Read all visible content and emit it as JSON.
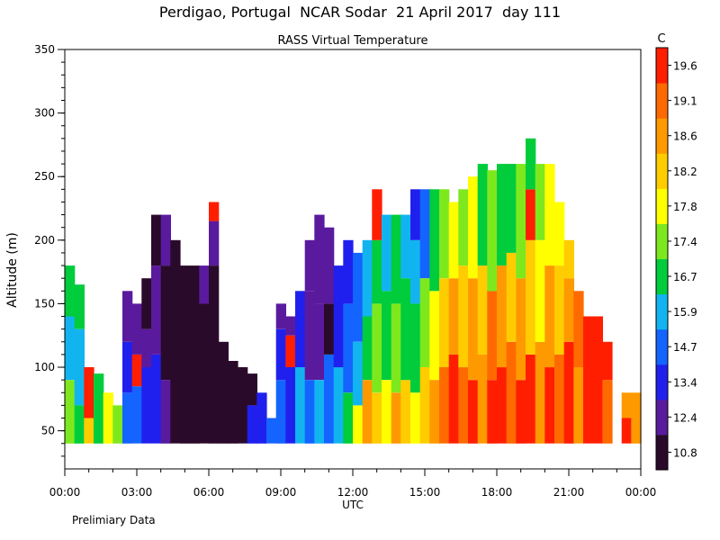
{
  "chart_data": {
    "type": "heatmap",
    "title": "Perdigao, Portugal  NCAR Sodar  21 April 2017  day 111",
    "subtitle": "RASS Virtual Temperature",
    "xlabel": "UTC",
    "ylabel": "Altitude (m)",
    "footnote": "Prelimiary Data",
    "colorbar_unit": "C",
    "xlim": [
      0,
      24
    ],
    "ylim": [
      20,
      350
    ],
    "x_ticks": [
      {
        "value": 0,
        "label": "00:00"
      },
      {
        "value": 3,
        "label": "03:00"
      },
      {
        "value": 6,
        "label": "06:00"
      },
      {
        "value": 9,
        "label": "09:00"
      },
      {
        "value": 12,
        "label": "12:00"
      },
      {
        "value": 15,
        "label": "15:00"
      },
      {
        "value": 18,
        "label": "18:00"
      },
      {
        "value": 21,
        "label": "21:00"
      },
      {
        "value": 24,
        "label": "00:00"
      }
    ],
    "y_ticks": [
      {
        "value": 50,
        "label": "50"
      },
      {
        "value": 100,
        "label": "100"
      },
      {
        "value": 150,
        "label": "150"
      },
      {
        "value": 200,
        "label": "200"
      },
      {
        "value": 250,
        "label": "250"
      },
      {
        "value": 300,
        "label": "300"
      },
      {
        "value": 350,
        "label": "350"
      }
    ],
    "colorbar_levels": [
      "10.8",
      "12.4",
      "13.4",
      "14.7",
      "15.9",
      "16.7",
      "17.4",
      "17.8",
      "18.2",
      "18.6",
      "19.1",
      "19.6"
    ],
    "colorbar_colors": [
      "#2a0a2a",
      "#5a1a9e",
      "#2020ee",
      "#1464ff",
      "#12b4f0",
      "#00cc3c",
      "#7ee81e",
      "#ffff00",
      "#ffcc00",
      "#ff9900",
      "#ff6a00",
      "#ff1e00"
    ],
    "columns": [
      {
        "t": 0.0,
        "top": 180,
        "bands": [
          [
            40,
            90,
            "#7ee81e"
          ],
          [
            90,
            140,
            "#12b4f0"
          ],
          [
            140,
            180,
            "#00cc3c"
          ]
        ]
      },
      {
        "t": 0.4,
        "top": 165,
        "bands": [
          [
            40,
            70,
            "#00cc3c"
          ],
          [
            70,
            130,
            "#12b4f0"
          ],
          [
            130,
            165,
            "#00cc3c"
          ]
        ]
      },
      {
        "t": 0.8,
        "top": 100,
        "bands": [
          [
            40,
            60,
            "#ffcc00"
          ],
          [
            60,
            100,
            "#ff1e00"
          ]
        ]
      },
      {
        "t": 1.2,
        "top": 95,
        "bands": [
          [
            40,
            95,
            "#00cc3c"
          ]
        ]
      },
      {
        "t": 1.6,
        "top": 80,
        "bands": [
          [
            40,
            80,
            "#ffff00"
          ]
        ]
      },
      {
        "t": 2.0,
        "top": 70,
        "bands": [
          [
            40,
            70,
            "#7ee81e"
          ]
        ]
      },
      {
        "t": 2.4,
        "top": 160,
        "bands": [
          [
            40,
            80,
            "#1464ff"
          ],
          [
            80,
            120,
            "#2020ee"
          ],
          [
            120,
            160,
            "#5a1a9e"
          ]
        ]
      },
      {
        "t": 2.8,
        "top": 150,
        "bands": [
          [
            40,
            85,
            "#1464ff"
          ],
          [
            85,
            110,
            "#ff1e00"
          ],
          [
            110,
            150,
            "#5a1a9e"
          ]
        ]
      },
      {
        "t": 3.2,
        "top": 170,
        "bands": [
          [
            40,
            100,
            "#2020ee"
          ],
          [
            100,
            130,
            "#5a1a9e"
          ],
          [
            130,
            170,
            "#2a0a2a"
          ]
        ]
      },
      {
        "t": 3.6,
        "top": 220,
        "bands": [
          [
            40,
            110,
            "#2020ee"
          ],
          [
            110,
            180,
            "#5a1a9e"
          ],
          [
            180,
            220,
            "#2a0a2a"
          ]
        ]
      },
      {
        "t": 4.0,
        "top": 220,
        "bands": [
          [
            40,
            90,
            "#5a1a9e"
          ],
          [
            90,
            180,
            "#2a0a2a"
          ],
          [
            180,
            220,
            "#5a1a9e"
          ]
        ]
      },
      {
        "t": 4.4,
        "top": 200,
        "bands": [
          [
            40,
            200,
            "#2a0a2a"
          ]
        ]
      },
      {
        "t": 4.8,
        "top": 180,
        "bands": [
          [
            40,
            180,
            "#2a0a2a"
          ]
        ]
      },
      {
        "t": 5.2,
        "top": 180,
        "bands": [
          [
            40,
            180,
            "#2a0a2a"
          ]
        ]
      },
      {
        "t": 5.6,
        "top": 180,
        "bands": [
          [
            40,
            150,
            "#2a0a2a"
          ],
          [
            150,
            180,
            "#5a1a9e"
          ]
        ]
      },
      {
        "t": 6.0,
        "top": 230,
        "bands": [
          [
            40,
            180,
            "#2a0a2a"
          ],
          [
            180,
            215,
            "#5a1a9e"
          ],
          [
            215,
            230,
            "#ff1e00"
          ]
        ]
      },
      {
        "t": 6.4,
        "top": 120,
        "bands": [
          [
            40,
            120,
            "#2a0a2a"
          ]
        ]
      },
      {
        "t": 6.8,
        "top": 105,
        "bands": [
          [
            40,
            105,
            "#2a0a2a"
          ]
        ]
      },
      {
        "t": 7.2,
        "top": 100,
        "bands": [
          [
            40,
            100,
            "#2a0a2a"
          ]
        ]
      },
      {
        "t": 7.6,
        "top": 95,
        "bands": [
          [
            40,
            70,
            "#2020ee"
          ],
          [
            70,
            95,
            "#2a0a2a"
          ]
        ]
      },
      {
        "t": 8.0,
        "top": 80,
        "bands": [
          [
            40,
            80,
            "#2020ee"
          ]
        ]
      },
      {
        "t": 8.4,
        "top": 60,
        "bands": [
          [
            40,
            60,
            "#1464ff"
          ]
        ]
      },
      {
        "t": 8.8,
        "top": 150,
        "bands": [
          [
            40,
            90,
            "#1464ff"
          ],
          [
            90,
            130,
            "#2020ee"
          ],
          [
            130,
            150,
            "#5a1a9e"
          ]
        ]
      },
      {
        "t": 9.2,
        "top": 140,
        "bands": [
          [
            40,
            100,
            "#2020ee"
          ],
          [
            100,
            125,
            "#ff1e00"
          ],
          [
            125,
            140,
            "#5a1a9e"
          ]
        ]
      },
      {
        "t": 9.6,
        "top": 160,
        "bands": [
          [
            40,
            100,
            "#12b4f0"
          ],
          [
            100,
            160,
            "#2020ee"
          ]
        ]
      },
      {
        "t": 10.0,
        "top": 200,
        "bands": [
          [
            40,
            90,
            "#1464ff"
          ],
          [
            90,
            160,
            "#5a1a9e"
          ],
          [
            160,
            200,
            "#5a1a9e"
          ]
        ]
      },
      {
        "t": 10.4,
        "top": 220,
        "bands": [
          [
            40,
            90,
            "#12b4f0"
          ],
          [
            90,
            150,
            "#5a1a9e"
          ],
          [
            150,
            220,
            "#5a1a9e"
          ]
        ]
      },
      {
        "t": 10.8,
        "top": 210,
        "bands": [
          [
            40,
            110,
            "#1464ff"
          ],
          [
            110,
            150,
            "#2a0a2a"
          ],
          [
            150,
            210,
            "#5a1a9e"
          ]
        ]
      },
      {
        "t": 11.2,
        "top": 180,
        "bands": [
          [
            40,
            100,
            "#12b4f0"
          ],
          [
            100,
            180,
            "#2020ee"
          ]
        ]
      },
      {
        "t": 11.6,
        "top": 200,
        "bands": [
          [
            40,
            80,
            "#00cc3c"
          ],
          [
            80,
            150,
            "#1464ff"
          ],
          [
            150,
            200,
            "#2020ee"
          ]
        ]
      },
      {
        "t": 12.0,
        "top": 190,
        "bands": [
          [
            40,
            70,
            "#ffff00"
          ],
          [
            70,
            120,
            "#12b4f0"
          ],
          [
            120,
            190,
            "#1464ff"
          ]
        ]
      },
      {
        "t": 12.4,
        "top": 200,
        "bands": [
          [
            40,
            90,
            "#ff9900"
          ],
          [
            90,
            140,
            "#00cc3c"
          ],
          [
            140,
            200,
            "#12b4f0"
          ]
        ]
      },
      {
        "t": 12.8,
        "top": 240,
        "bands": [
          [
            40,
            80,
            "#ffcc00"
          ],
          [
            80,
            150,
            "#7ee81e"
          ],
          [
            150,
            200,
            "#00cc3c"
          ],
          [
            200,
            240,
            "#ff1e00"
          ]
        ]
      },
      {
        "t": 13.2,
        "top": 220,
        "bands": [
          [
            40,
            90,
            "#ffff00"
          ],
          [
            90,
            160,
            "#00cc3c"
          ],
          [
            160,
            220,
            "#12b4f0"
          ]
        ]
      },
      {
        "t": 13.6,
        "top": 220,
        "bands": [
          [
            40,
            80,
            "#ff9900"
          ],
          [
            80,
            150,
            "#7ee81e"
          ],
          [
            150,
            220,
            "#00cc3c"
          ]
        ]
      },
      {
        "t": 14.0,
        "top": 220,
        "bands": [
          [
            40,
            90,
            "#ffcc00"
          ],
          [
            90,
            170,
            "#00cc3c"
          ],
          [
            170,
            220,
            "#12b4f0"
          ]
        ]
      },
      {
        "t": 14.4,
        "top": 240,
        "bands": [
          [
            40,
            80,
            "#ffff00"
          ],
          [
            80,
            150,
            "#00cc3c"
          ],
          [
            150,
            200,
            "#12b4f0"
          ],
          [
            200,
            240,
            "#2020ee"
          ]
        ]
      },
      {
        "t": 14.8,
        "top": 240,
        "bands": [
          [
            40,
            100,
            "#ffcc00"
          ],
          [
            100,
            170,
            "#7ee81e"
          ],
          [
            170,
            240,
            "#1464ff"
          ]
        ]
      },
      {
        "t": 15.2,
        "top": 240,
        "bands": [
          [
            40,
            90,
            "#ff9900"
          ],
          [
            90,
            160,
            "#ffff00"
          ],
          [
            160,
            240,
            "#00cc3c"
          ]
        ]
      },
      {
        "t": 15.6,
        "top": 240,
        "bands": [
          [
            40,
            100,
            "#ff6a00"
          ],
          [
            100,
            170,
            "#ffcc00"
          ],
          [
            170,
            240,
            "#7ee81e"
          ]
        ]
      },
      {
        "t": 16.0,
        "top": 230,
        "bands": [
          [
            40,
            110,
            "#ff1e00"
          ],
          [
            110,
            170,
            "#ff9900"
          ],
          [
            170,
            230,
            "#ffff00"
          ]
        ]
      },
      {
        "t": 16.4,
        "top": 240,
        "bands": [
          [
            40,
            100,
            "#ff6a00"
          ],
          [
            100,
            180,
            "#ffcc00"
          ],
          [
            180,
            240,
            "#7ee81e"
          ]
        ]
      },
      {
        "t": 16.8,
        "top": 250,
        "bands": [
          [
            40,
            90,
            "#ff1e00"
          ],
          [
            90,
            170,
            "#ff9900"
          ],
          [
            170,
            250,
            "#ffff00"
          ]
        ]
      },
      {
        "t": 17.2,
        "top": 260,
        "bands": [
          [
            40,
            110,
            "#ff9900"
          ],
          [
            110,
            180,
            "#ffcc00"
          ],
          [
            180,
            260,
            "#00cc3c"
          ]
        ]
      },
      {
        "t": 17.6,
        "top": 255,
        "bands": [
          [
            40,
            90,
            "#ff1e00"
          ],
          [
            90,
            160,
            "#ff6a00"
          ],
          [
            160,
            255,
            "#7ee81e"
          ]
        ]
      },
      {
        "t": 18.0,
        "top": 260,
        "bands": [
          [
            40,
            100,
            "#ff1e00"
          ],
          [
            100,
            180,
            "#ff9900"
          ],
          [
            180,
            260,
            "#00cc3c"
          ]
        ]
      },
      {
        "t": 18.4,
        "top": 260,
        "bands": [
          [
            40,
            120,
            "#ff6a00"
          ],
          [
            120,
            190,
            "#ffcc00"
          ],
          [
            190,
            260,
            "#00cc3c"
          ]
        ]
      },
      {
        "t": 18.8,
        "top": 260,
        "bands": [
          [
            40,
            90,
            "#ff1e00"
          ],
          [
            90,
            170,
            "#ff9900"
          ],
          [
            170,
            260,
            "#7ee81e"
          ]
        ]
      },
      {
        "t": 19.2,
        "top": 280,
        "bands": [
          [
            40,
            110,
            "#ff1e00"
          ],
          [
            110,
            200,
            "#ffcc00"
          ],
          [
            200,
            240,
            "#ff1e00"
          ],
          [
            240,
            280,
            "#00cc3c"
          ]
        ]
      },
      {
        "t": 19.6,
        "top": 260,
        "bands": [
          [
            40,
            120,
            "#ff9900"
          ],
          [
            120,
            200,
            "#ffff00"
          ],
          [
            200,
            260,
            "#7ee81e"
          ]
        ]
      },
      {
        "t": 20.0,
        "top": 260,
        "bands": [
          [
            40,
            100,
            "#ff1e00"
          ],
          [
            100,
            180,
            "#ff9900"
          ],
          [
            180,
            260,
            "#ffff00"
          ]
        ]
      },
      {
        "t": 20.4,
        "top": 230,
        "bands": [
          [
            40,
            110,
            "#ff6a00"
          ],
          [
            110,
            180,
            "#ffcc00"
          ],
          [
            180,
            230,
            "#ffff00"
          ]
        ]
      },
      {
        "t": 20.8,
        "top": 200,
        "bands": [
          [
            40,
            120,
            "#ff1e00"
          ],
          [
            120,
            170,
            "#ff9900"
          ],
          [
            170,
            200,
            "#ffcc00"
          ]
        ]
      },
      {
        "t": 21.2,
        "top": 160,
        "bands": [
          [
            40,
            100,
            "#ff9900"
          ],
          [
            100,
            160,
            "#ff6a00"
          ]
        ]
      },
      {
        "t": 21.6,
        "top": 140,
        "bands": [
          [
            40,
            140,
            "#ff1e00"
          ]
        ]
      },
      {
        "t": 22.0,
        "top": 140,
        "bands": [
          [
            40,
            140,
            "#ff1e00"
          ]
        ]
      },
      {
        "t": 22.4,
        "top": 120,
        "bands": [
          [
            40,
            90,
            "#ff6a00"
          ],
          [
            90,
            120,
            "#ff1e00"
          ]
        ]
      },
      {
        "t": 22.8,
        "top": 40,
        "bands": []
      },
      {
        "t": 23.2,
        "top": 80,
        "bands": [
          [
            40,
            60,
            "#ff1e00"
          ],
          [
            60,
            80,
            "#ff9900"
          ]
        ]
      },
      {
        "t": 23.6,
        "top": 80,
        "bands": [
          [
            40,
            80,
            "#ff9900"
          ]
        ]
      }
    ]
  }
}
